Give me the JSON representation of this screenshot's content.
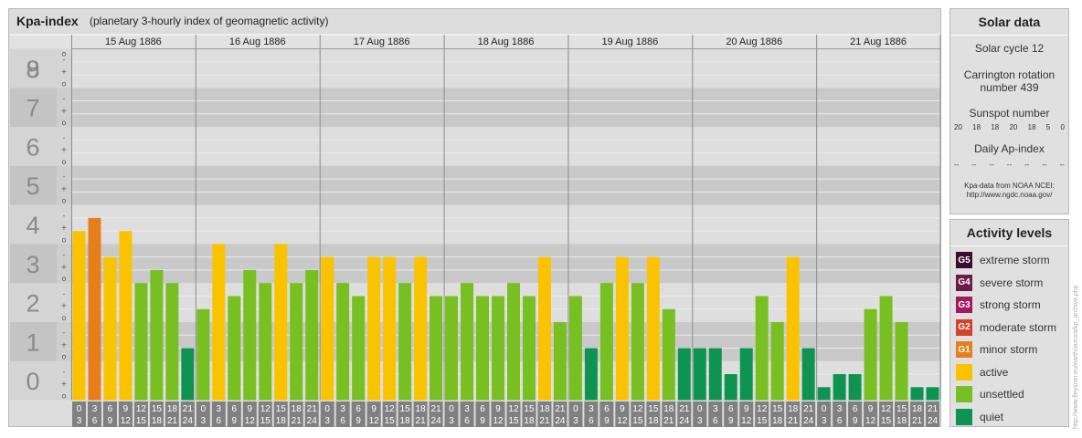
{
  "header": {
    "title": "Kpa-index",
    "subtitle": "(planetary 3-hourly index of geomagnetic activity)"
  },
  "chart_data": {
    "type": "bar",
    "ylim": [
      0,
      9
    ],
    "y_ticks": [
      "0",
      "1",
      "2",
      "3",
      "4",
      "5",
      "6",
      "7",
      "8",
      "9"
    ],
    "minor_ticks": [
      "o",
      "+",
      "-"
    ],
    "days": [
      "15 Aug 1886",
      "16 Aug 1886",
      "17 Aug 1886",
      "18 Aug 1886",
      "19 Aug 1886",
      "20 Aug 1886",
      "21 Aug 1886"
    ],
    "interval_labels": [
      [
        "0",
        "3"
      ],
      [
        "3",
        "6"
      ],
      [
        "6",
        "9"
      ],
      [
        "9",
        "12"
      ],
      [
        "12",
        "15"
      ],
      [
        "15",
        "18"
      ],
      [
        "18",
        "21"
      ],
      [
        "21",
        "24"
      ]
    ],
    "values": [
      [
        4.333,
        4.667,
        3.667,
        4.333,
        3.0,
        3.333,
        3.0,
        1.333
      ],
      [
        2.333,
        4.0,
        2.667,
        3.333,
        3.0,
        4.0,
        3.0,
        3.333
      ],
      [
        3.667,
        3.0,
        2.667,
        3.667,
        3.667,
        3.0,
        3.667,
        2.667
      ],
      [
        2.667,
        3.0,
        2.667,
        2.667,
        3.0,
        2.667,
        3.667,
        2.0
      ],
      [
        2.667,
        1.333,
        3.0,
        3.667,
        3.0,
        3.667,
        2.333,
        1.333
      ],
      [
        1.333,
        1.333,
        0.667,
        1.333,
        2.667,
        2.0,
        3.667,
        1.333
      ],
      [
        0.333,
        0.667,
        0.667,
        2.333,
        2.667,
        2.0,
        0.333,
        0.333
      ]
    ],
    "colors": {
      "quiet": "#0e9450",
      "unsettled": "#78bf21",
      "active": "#fac300",
      "G1": "#e67e1b",
      "G2": "#d3432a",
      "G3": "#a3195b",
      "G4": "#6d1b47",
      "G5": "#3f0d2c",
      "axis_bg": "#808080"
    },
    "grid": true
  },
  "solar": {
    "title": "Solar data",
    "cycle": "Solar cycle 12",
    "carrington": "Carrington rotation",
    "carrington_num": "number 439",
    "sunspot_title": "Sunspot number",
    "sunspot_values": [
      "20",
      "18",
      "18",
      "20",
      "18",
      "5",
      "0"
    ],
    "ap_title": "Daily Ap-index",
    "ap_values": [
      "--",
      "--",
      "--",
      "--",
      "--",
      "--",
      "--"
    ],
    "source_line1": "Kpa-data from NOAA NCEI:",
    "source_line2": "http://www.ngdc.noaa.gov/"
  },
  "levels": {
    "title": "Activity levels",
    "items": [
      {
        "code": "G5",
        "label": "extreme storm",
        "color": "#3f0d2c"
      },
      {
        "code": "G4",
        "label": "severe storm",
        "color": "#6d1b47"
      },
      {
        "code": "G3",
        "label": "strong storm",
        "color": "#a3195b"
      },
      {
        "code": "G2",
        "label": "moderate storm",
        "color": "#d3432a"
      },
      {
        "code": "G1",
        "label": "minor storm",
        "color": "#e67e1b"
      },
      {
        "code": "",
        "label": "active",
        "color": "#fac300"
      },
      {
        "code": "",
        "label": "unsettled",
        "color": "#78bf21"
      },
      {
        "code": "",
        "label": "quiet",
        "color": "#0e9450"
      }
    ]
  },
  "credit": "http://www.fleysner.eu/earth/aurora/kp_archive.php"
}
